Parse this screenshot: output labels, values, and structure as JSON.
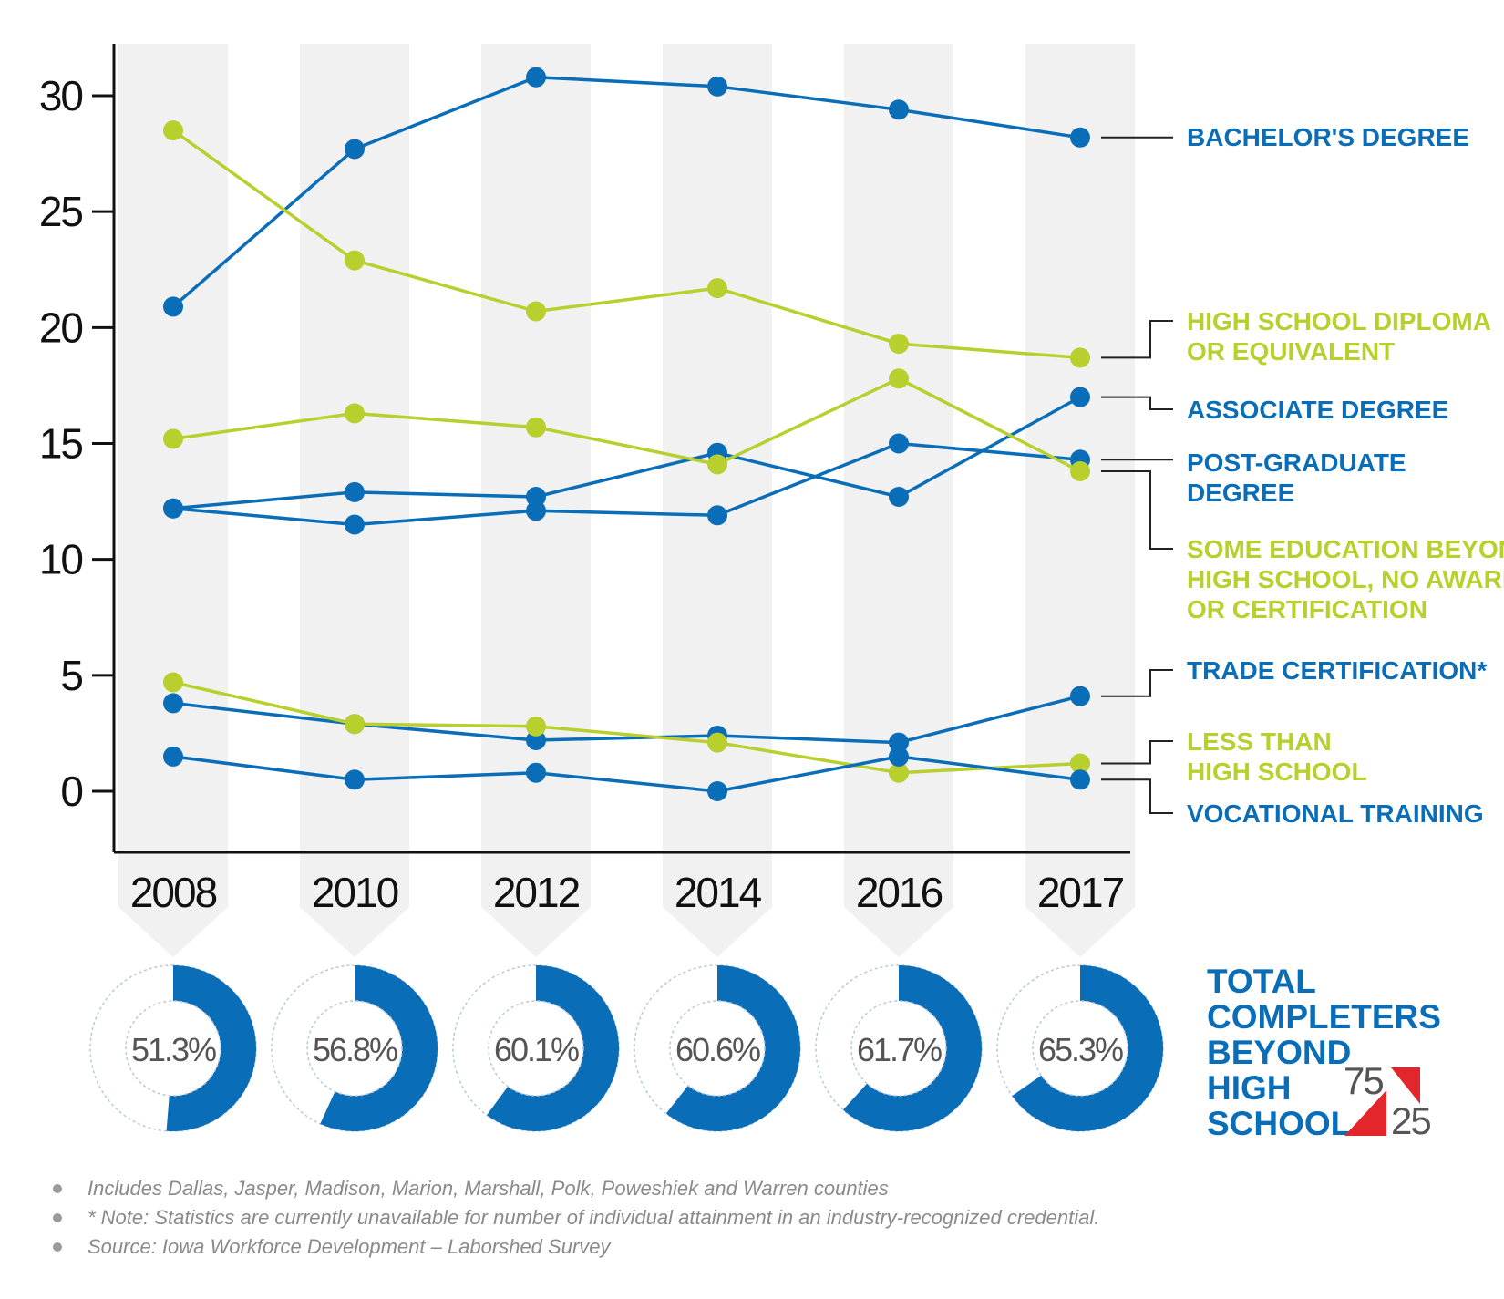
{
  "chart_data": {
    "type": "line",
    "x": [
      "2008",
      "2010",
      "2012",
      "2014",
      "2016",
      "2017"
    ],
    "ylim": [
      -2.5,
      32
    ],
    "yticks": [
      0,
      5,
      10,
      15,
      20,
      25,
      30
    ],
    "grid": "alternating vertical column bands",
    "series": [
      {
        "name": "BACHELOR'S DEGREE",
        "label_lines": [
          "BACHELOR'S DEGREE"
        ],
        "color": "#0a6db7",
        "values": [
          20.9,
          27.7,
          30.8,
          30.4,
          29.4,
          28.2
        ]
      },
      {
        "name": "HIGH SCHOOL DIPLOMA OR EQUIVALENT",
        "label_lines": [
          "HIGH SCHOOL DIPLOMA",
          "OR EQUIVALENT"
        ],
        "color": "#b9cf2d",
        "values": [
          28.5,
          22.9,
          20.7,
          21.7,
          19.3,
          18.7
        ]
      },
      {
        "name": "ASSOCIATE DEGREE",
        "label_lines": [
          "ASSOCIATE DEGREE"
        ],
        "color": "#0a6db7",
        "values": [
          12.2,
          12.9,
          12.7,
          14.6,
          12.7,
          17.0
        ]
      },
      {
        "name": "POST-GRADUATE DEGREE",
        "label_lines": [
          "POST-GRADUATE",
          "DEGREE"
        ],
        "color": "#0a6db7",
        "values": [
          12.2,
          11.5,
          12.1,
          11.9,
          15.0,
          14.3
        ]
      },
      {
        "name": "SOME EDUCATION BEYOND HIGH SCHOOL, NO AWARD OR CERTIFICATION",
        "label_lines": [
          "SOME EDUCATION BEYOND",
          "HIGH SCHOOL, NO AWARD",
          "OR CERTIFICATION"
        ],
        "color": "#b9cf2d",
        "values": [
          15.2,
          16.3,
          15.7,
          14.1,
          17.8,
          13.8
        ]
      },
      {
        "name": "TRADE CERTIFICATION*",
        "label_lines": [
          "TRADE CERTIFICATION*"
        ],
        "color": "#0a6db7",
        "values": [
          3.8,
          2.9,
          2.2,
          2.4,
          2.1,
          4.1
        ]
      },
      {
        "name": "LESS THAN HIGH SCHOOL",
        "label_lines": [
          "LESS THAN",
          "HIGH SCHOOL"
        ],
        "color": "#b9cf2d",
        "values": [
          4.7,
          2.9,
          2.8,
          2.1,
          0.8,
          1.2
        ]
      },
      {
        "name": "VOCATIONAL TRAINING",
        "label_lines": [
          "VOCATIONAL TRAINING"
        ],
        "color": "#0a6db7",
        "values": [
          1.5,
          0.5,
          0.8,
          0.0,
          1.5,
          0.5
        ]
      }
    ],
    "donuts": [
      {
        "year": "2008",
        "value": 51.3,
        "label": "51.3%"
      },
      {
        "year": "2010",
        "value": 56.8,
        "label": "56.8%"
      },
      {
        "year": "2012",
        "value": 60.1,
        "label": "60.1%"
      },
      {
        "year": "2014",
        "value": 60.6,
        "label": "60.6%"
      },
      {
        "year": "2016",
        "value": 61.7,
        "label": "61.7%"
      },
      {
        "year": "2017",
        "value": 65.3,
        "label": "65.3%"
      }
    ],
    "total_label_lines": [
      "TOTAL",
      "COMPLETERS",
      "BEYOND",
      "HIGH",
      "SCHOOL ="
    ],
    "goal": {
      "top": "75",
      "bottom": "25"
    }
  },
  "colors": {
    "blue": "#0a6db7",
    "green": "#b9cf2d",
    "band": "#f1f1f1",
    "axis": "#111111",
    "red": "#e3262b"
  },
  "notes": [
    "Includes Dallas, Jasper, Madison, Marion, Marshall, Polk, Poweshiek and Warren counties",
    "* Note: Statistics are currently unavailable for number of individual attainment in an industry-recognized credential.",
    "Source: Iowa Workforce Development – Laborshed Survey"
  ]
}
